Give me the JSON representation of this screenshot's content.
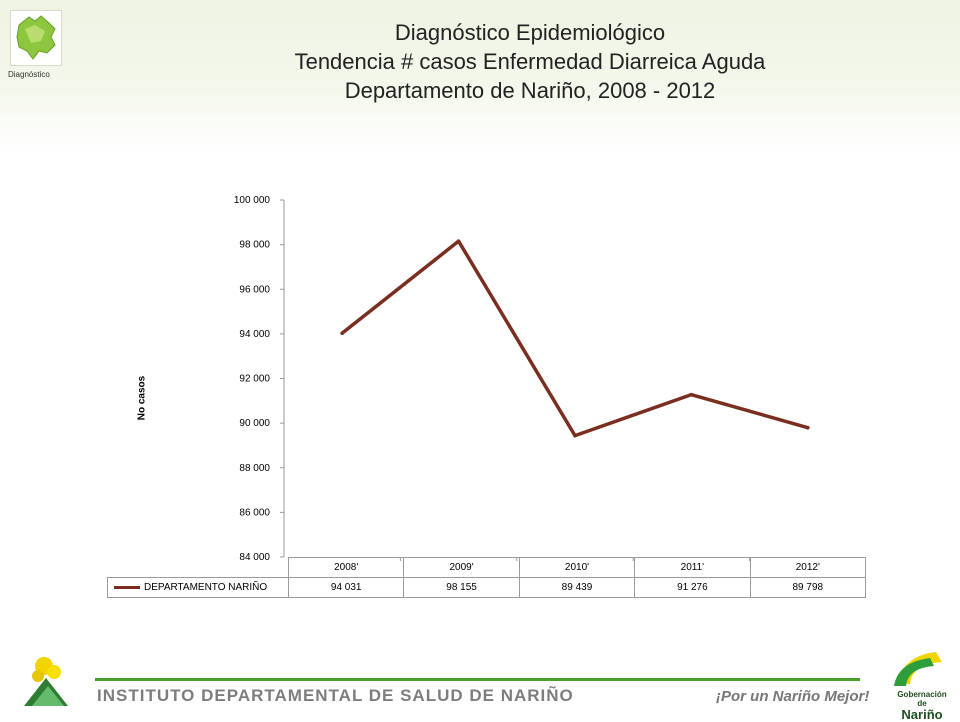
{
  "header": {
    "logo_caption": "Diagnóstico",
    "title_lines": [
      "Diagnóstico Epidemiológico",
      "Tendencia # casos Enfermedad Diarreica Aguda",
      "Departamento de Nariño,  2008 - 2012"
    ]
  },
  "chart_data": {
    "type": "line",
    "categories": [
      "2008'",
      "2009'",
      "2010'",
      "2011'",
      "2012'"
    ],
    "series": [
      {
        "name": "DEPARTAMENTO NARIÑO",
        "values": [
          94031,
          98155,
          89439,
          91276,
          89798
        ],
        "color": "#7a2e1f"
      }
    ],
    "value_labels": [
      "94 031",
      "98 155",
      "89 439",
      "91 276",
      "89 798"
    ],
    "ylabel": "No casos",
    "ylim": [
      84000,
      100000
    ],
    "yticks": [
      84000,
      86000,
      88000,
      90000,
      92000,
      94000,
      96000,
      98000,
      100000
    ],
    "ytick_labels": [
      "84 000",
      "86 000",
      "88 000",
      "90 000",
      "92 000",
      "94 000",
      "96 000",
      "98 000",
      "100 000"
    ],
    "grid": false,
    "legend": "data-table"
  },
  "footer": {
    "institute": "INSTITUTO DEPARTAMENTAL DE SALUD DE NARIÑO",
    "slogan": "¡Por un Nariño Mejor!",
    "gob_small": "Gobernación de",
    "gob_big": "Nariño",
    "accent": "#4aa02c"
  }
}
